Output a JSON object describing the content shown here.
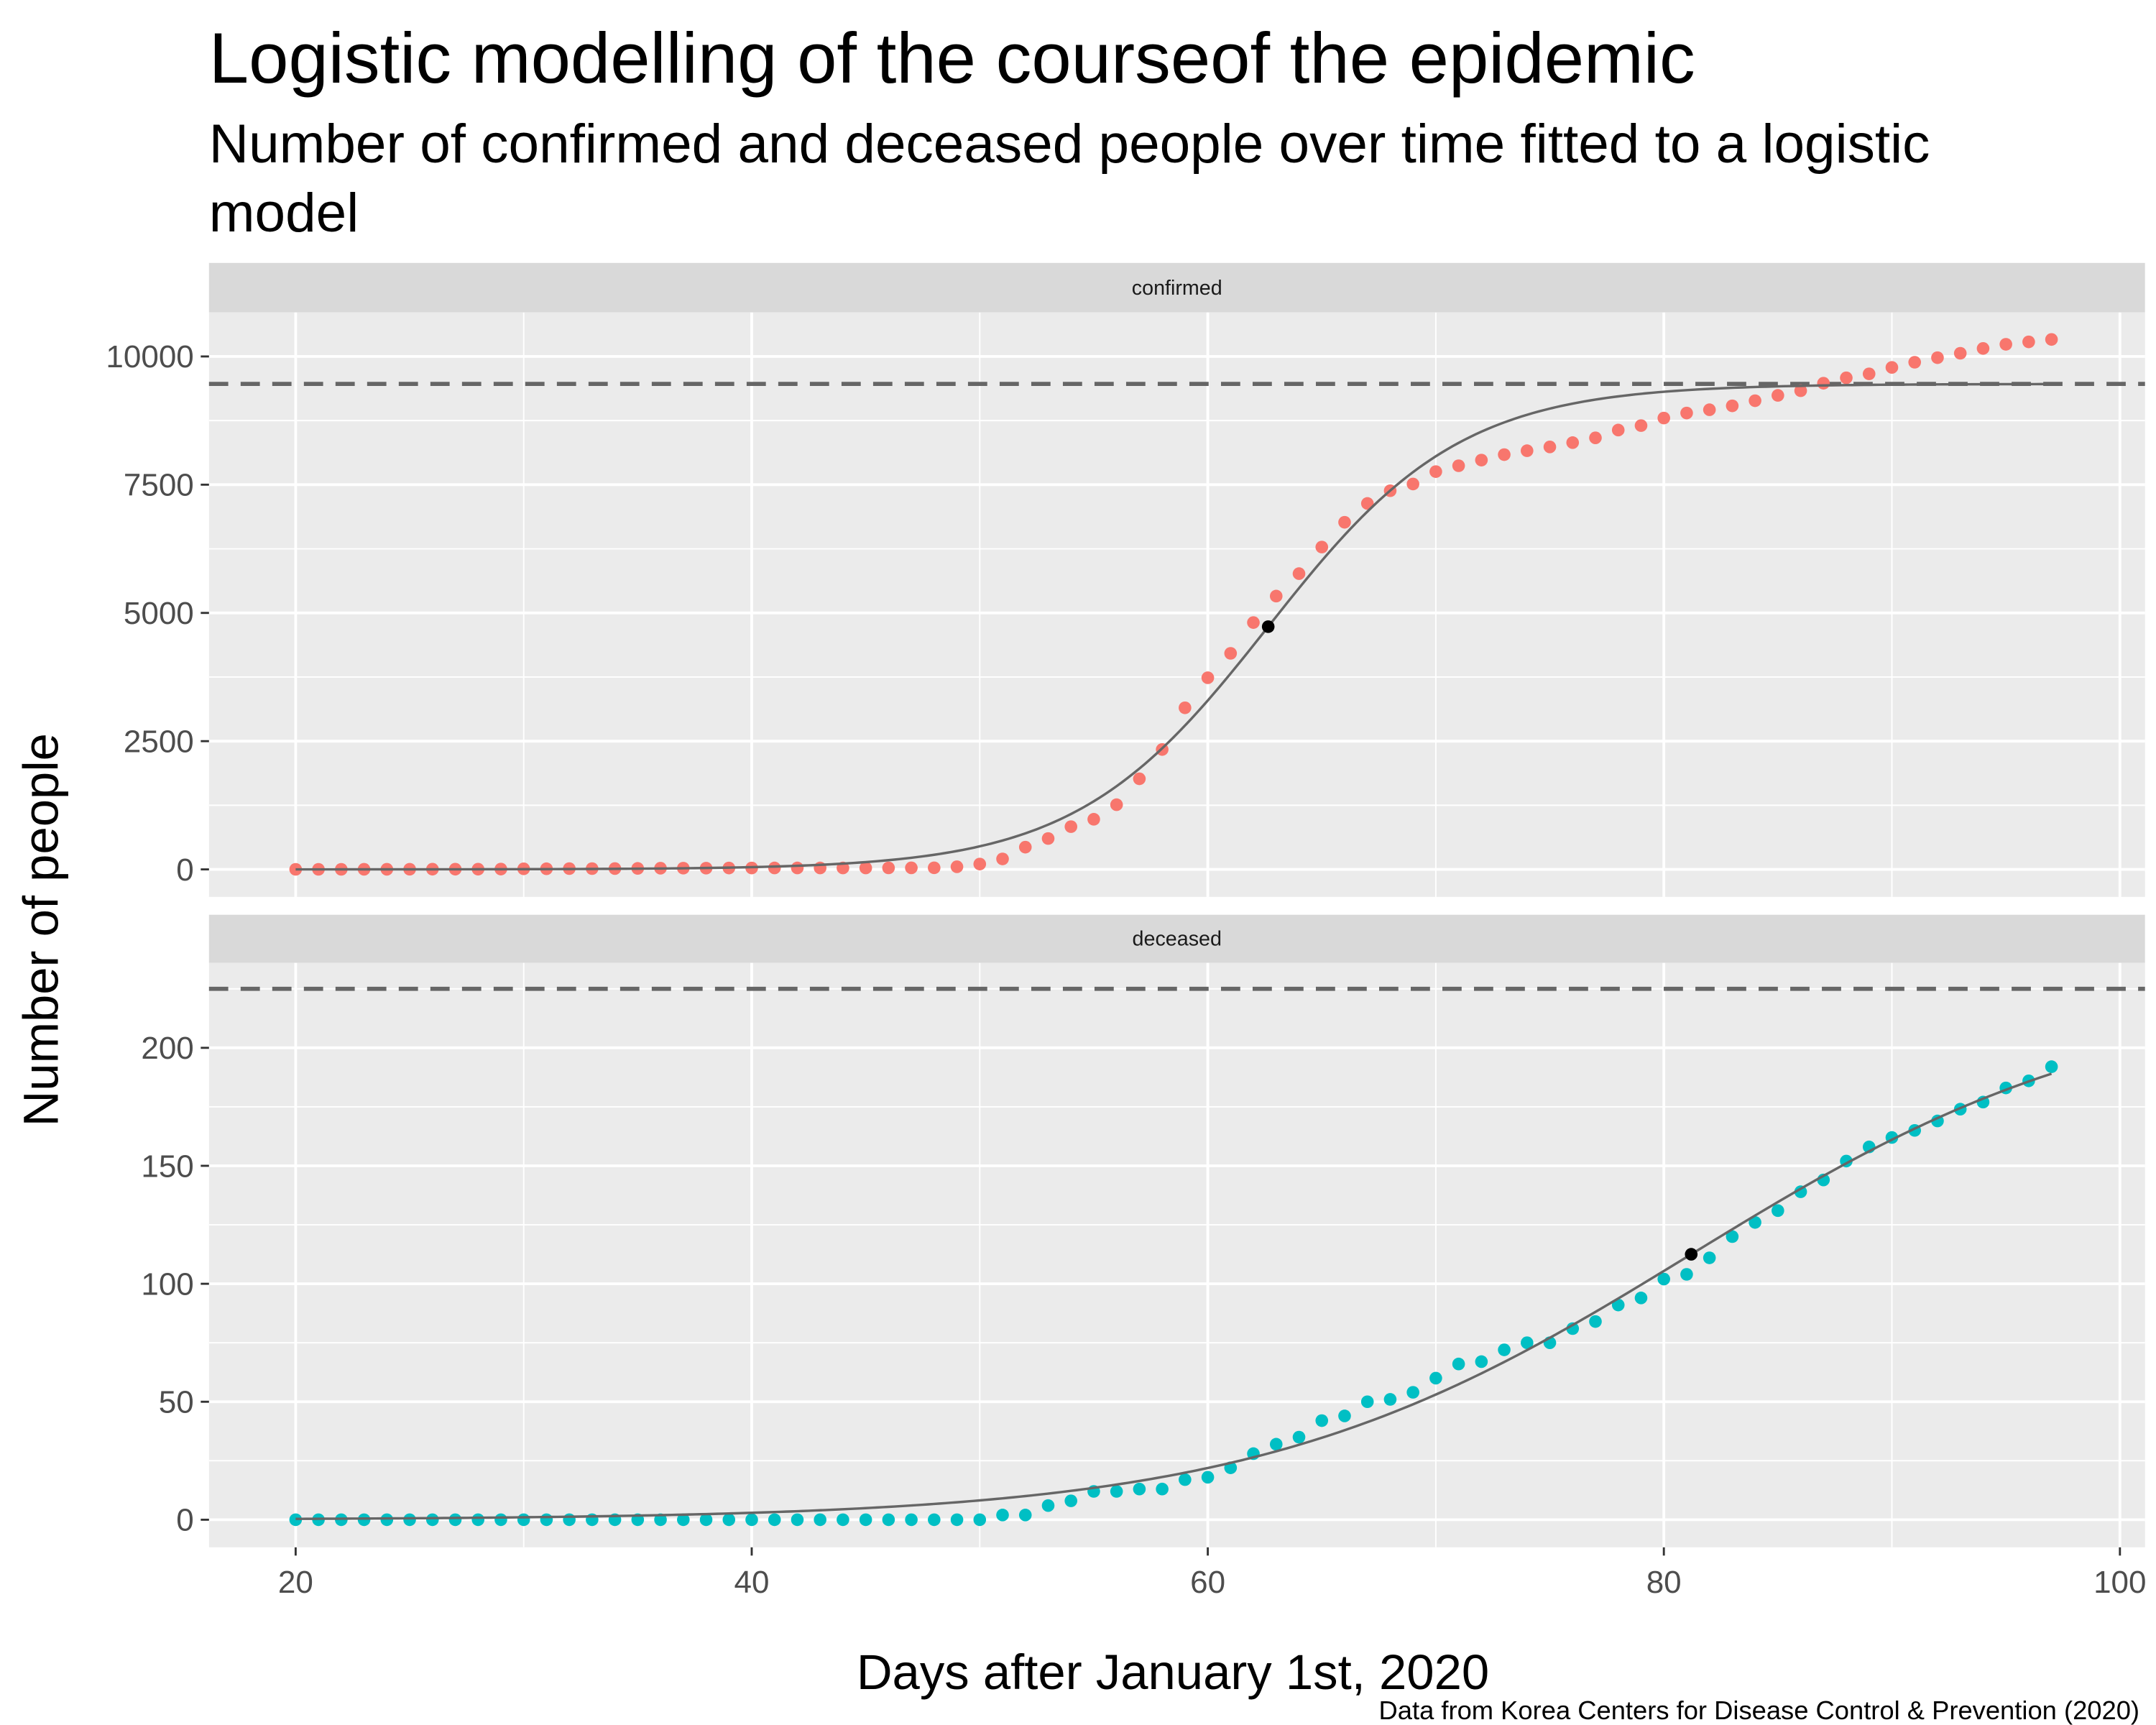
{
  "title": "Logistic modelling of the courseof the epidemic",
  "subtitle": "Number of confirmed and deceased people over time fitted to a logistic model",
  "xlabel": "Days after January 1st, 2020",
  "ylabel": "Number of people",
  "caption": "Data from Korea Centers for Disease Control & Prevention (2020)",
  "chart_data": [
    {
      "type": "scatter",
      "x": [
        20,
        21,
        22,
        23,
        24,
        25,
        26,
        27,
        28,
        29,
        30,
        31,
        32,
        33,
        34,
        35,
        36,
        37,
        38,
        39,
        40,
        41,
        42,
        43,
        44,
        45,
        46,
        47,
        48,
        49,
        50,
        51,
        52,
        53,
        54,
        55,
        56,
        57,
        58,
        59,
        60,
        61,
        62,
        63,
        64,
        65,
        66,
        67,
        68,
        69,
        70,
        71,
        72,
        73,
        74,
        75,
        76,
        77,
        78,
        79,
        80,
        81,
        82,
        83,
        84,
        85,
        86,
        87,
        88,
        89,
        90,
        91,
        92,
        93,
        94,
        95,
        96,
        97
      ],
      "series": [
        {
          "name": "confirmed",
          "color": "#F8766D",
          "values": [
            1,
            1,
            1,
            2,
            2,
            3,
            4,
            4,
            4,
            6,
            11,
            12,
            15,
            15,
            16,
            19,
            23,
            24,
            24,
            27,
            27,
            28,
            28,
            28,
            28,
            28,
            29,
            30,
            31,
            51,
            104,
            204,
            433,
            602,
            833,
            977,
            1261,
            1766,
            2337,
            3150,
            3736,
            4212,
            4812,
            5328,
            5766,
            6284,
            6767,
            7134,
            7382,
            7513,
            7755,
            7869,
            7979,
            8086,
            8162,
            8236,
            8320,
            8413,
            8565,
            8652,
            8799,
            8897,
            8961,
            9037,
            9137,
            9241,
            9332,
            9478,
            9583,
            9661,
            9786,
            9887,
            9976,
            10062,
            10156,
            10237,
            10284,
            10331
          ]
        }
      ],
      "fit": {
        "asymptote": 9464,
        "midpoint": 62.65,
        "rate": 0.237
      },
      "xlim": [
        16.2,
        101.1
      ],
      "xticks": [
        20,
        40,
        60,
        80,
        100
      ],
      "ylim": [
        -536,
        10858
      ],
      "yticks": [
        0,
        2500,
        5000,
        7500,
        10000
      ],
      "grid": true
    },
    {
      "type": "scatter",
      "x": [
        20,
        21,
        22,
        23,
        24,
        25,
        26,
        27,
        28,
        29,
        30,
        31,
        32,
        33,
        34,
        35,
        36,
        37,
        38,
        39,
        40,
        41,
        42,
        43,
        44,
        45,
        46,
        47,
        48,
        49,
        50,
        51,
        52,
        53,
        54,
        55,
        56,
        57,
        58,
        59,
        60,
        61,
        62,
        63,
        64,
        65,
        66,
        67,
        68,
        69,
        70,
        71,
        72,
        73,
        74,
        75,
        76,
        77,
        78,
        79,
        80,
        81,
        82,
        83,
        84,
        85,
        86,
        87,
        88,
        89,
        90,
        91,
        92,
        93,
        94,
        95,
        96,
        97
      ],
      "series": [
        {
          "name": "deceased",
          "color": "#00BFC4",
          "values": [
            0,
            0,
            0,
            0,
            0,
            0,
            0,
            0,
            0,
            0,
            0,
            0,
            0,
            0,
            0,
            0,
            0,
            0,
            0,
            0,
            0,
            0,
            0,
            0,
            0,
            0,
            0,
            0,
            0,
            0,
            0,
            2,
            2,
            6,
            8,
            12,
            12,
            13,
            13,
            17,
            18,
            22,
            28,
            32,
            35,
            42,
            44,
            50,
            51,
            54,
            60,
            66,
            67,
            72,
            75,
            75,
            81,
            84,
            91,
            94,
            102,
            104,
            111,
            120,
            126,
            131,
            139,
            144,
            152,
            158,
            162,
            165,
            169,
            174,
            177,
            183,
            186,
            192
          ]
        }
      ],
      "fit": {
        "asymptote": 225,
        "midpoint": 81.2,
        "rate": 0.105
      },
      "xlim": [
        16.2,
        101.1
      ],
      "xticks": [
        20,
        40,
        60,
        80,
        100
      ],
      "ylim": [
        -11.7,
        236
      ],
      "yticks": [
        0,
        50,
        100,
        150,
        200
      ],
      "grid": true
    }
  ]
}
